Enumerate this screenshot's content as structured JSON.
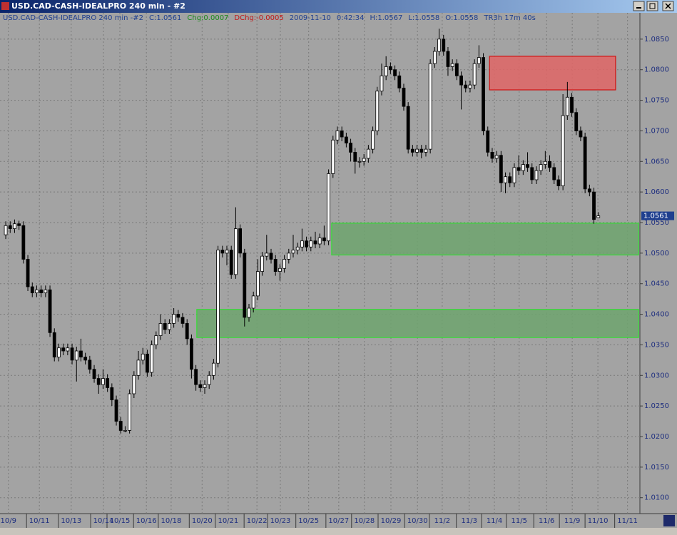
{
  "window_title": "USD.CAD-CASH-IDEALPRO  240 min  - #2",
  "chart_data": {
    "type": "candlestick",
    "info": [
      {
        "text": "USD.CAD-CASH-IDEALPRO  240 min  -#2",
        "color": "#1f3f8f"
      },
      {
        "text": "C:1.0561",
        "color": "#1f3f8f"
      },
      {
        "text": "Chg:0.0007",
        "color": "#1a8a1a"
      },
      {
        "text": "DChg:-0.0005",
        "color": "#c01818"
      },
      {
        "text": "2009-11-10",
        "color": "#1f3f8f"
      },
      {
        "text": "0:42:34",
        "color": "#1f3f8f"
      },
      {
        "text": "H:1.0567",
        "color": "#1f3f8f"
      },
      {
        "text": "L:1.0558",
        "color": "#1f3f8f"
      },
      {
        "text": "O:1.0558",
        "color": "#1f3f8f"
      },
      {
        "text": "TR3h 17m 40s",
        "color": "#1f3f8f"
      }
    ],
    "ohlc": [
      [
        1.053,
        1.0552,
        1.0523,
        1.0545
      ],
      [
        1.0545,
        1.0552,
        1.0533,
        1.054
      ],
      [
        1.054,
        1.0555,
        1.0533,
        1.0548
      ],
      [
        1.0548,
        1.0553,
        1.0538,
        1.0545
      ],
      [
        1.0545,
        1.0552,
        1.0483,
        1.049
      ],
      [
        1.049,
        1.0497,
        1.0438,
        1.0445
      ],
      [
        1.0445,
        1.0452,
        1.0428,
        1.0435
      ],
      [
        1.0435,
        1.0447,
        1.0428,
        1.044
      ],
      [
        1.044,
        1.0447,
        1.0428,
        1.0435
      ],
      [
        1.0435,
        1.0447,
        1.0428,
        1.044
      ],
      [
        1.044,
        1.0447,
        1.0363,
        1.037
      ],
      [
        1.037,
        1.0377,
        1.0323,
        1.033
      ],
      [
        1.033,
        1.0352,
        1.0323,
        1.0345
      ],
      [
        1.0345,
        1.0352,
        1.0333,
        1.034
      ],
      [
        1.034,
        1.0352,
        1.0333,
        1.0345
      ],
      [
        1.0345,
        1.0352,
        1.0318,
        1.0325
      ],
      [
        1.0325,
        1.0347,
        1.029,
        1.034
      ],
      [
        1.034,
        1.036,
        1.0323,
        1.033
      ],
      [
        1.033,
        1.0337,
        1.0318,
        1.0325
      ],
      [
        1.0325,
        1.0332,
        1.0303,
        1.031
      ],
      [
        1.031,
        1.0317,
        1.0288,
        1.0295
      ],
      [
        1.0295,
        1.0302,
        1.027,
        1.0285
      ],
      [
        1.0285,
        1.031,
        1.0278,
        1.0295
      ],
      [
        1.0295,
        1.0302,
        1.0273,
        1.028
      ],
      [
        1.028,
        1.0287,
        1.025,
        1.026
      ],
      [
        1.026,
        1.0267,
        1.0218,
        1.0225
      ],
      [
        1.0225,
        1.0232,
        1.0205,
        1.021
      ],
      [
        1.021,
        1.0217,
        1.0207,
        1.021
      ],
      [
        1.021,
        1.0277,
        1.0205,
        1.027
      ],
      [
        1.027,
        1.0307,
        1.0263,
        1.03
      ],
      [
        1.03,
        1.034,
        1.0293,
        1.0325
      ],
      [
        1.0325,
        1.0345,
        1.0318,
        1.0335
      ],
      [
        1.0335,
        1.0342,
        1.0298,
        1.0305
      ],
      [
        1.0305,
        1.0357,
        1.0298,
        1.035
      ],
      [
        1.035,
        1.0372,
        1.0343,
        1.0365
      ],
      [
        1.0365,
        1.04,
        1.0358,
        1.0385
      ],
      [
        1.0385,
        1.0392,
        1.0368,
        1.0375
      ],
      [
        1.0375,
        1.0392,
        1.0368,
        1.0385
      ],
      [
        1.0385,
        1.041,
        1.0378,
        1.04
      ],
      [
        1.04,
        1.0407,
        1.0388,
        1.0395
      ],
      [
        1.0395,
        1.0402,
        1.0378,
        1.0385
      ],
      [
        1.0385,
        1.0392,
        1.035,
        1.036
      ],
      [
        1.036,
        1.0367,
        1.0295,
        1.031
      ],
      [
        1.031,
        1.0317,
        1.0275,
        1.0285
      ],
      [
        1.0285,
        1.0292,
        1.0273,
        1.028
      ],
      [
        1.028,
        1.0292,
        1.027,
        1.0285
      ],
      [
        1.0285,
        1.0307,
        1.0278,
        1.03
      ],
      [
        1.03,
        1.0327,
        1.0293,
        1.032
      ],
      [
        1.032,
        1.0512,
        1.0313,
        1.0505
      ],
      [
        1.0505,
        1.0512,
        1.0493,
        1.05
      ],
      [
        1.05,
        1.0512,
        1.048,
        1.0505
      ],
      [
        1.0505,
        1.0512,
        1.0458,
        1.0465
      ],
      [
        1.0465,
        1.0575,
        1.0458,
        1.054
      ],
      [
        1.054,
        1.0547,
        1.0493,
        1.05
      ],
      [
        1.05,
        1.0507,
        1.038,
        1.0395
      ],
      [
        1.0395,
        1.0417,
        1.0388,
        1.041
      ],
      [
        1.041,
        1.0437,
        1.0403,
        1.043
      ],
      [
        1.043,
        1.049,
        1.0423,
        1.047
      ],
      [
        1.047,
        1.0502,
        1.0463,
        1.0495
      ],
      [
        1.0495,
        1.053,
        1.0488,
        1.05
      ],
      [
        1.05,
        1.0507,
        1.0483,
        1.049
      ],
      [
        1.049,
        1.0497,
        1.0463,
        1.047
      ],
      [
        1.047,
        1.0482,
        1.0455,
        1.0475
      ],
      [
        1.0475,
        1.0497,
        1.0468,
        1.049
      ],
      [
        1.049,
        1.0507,
        1.0483,
        1.05
      ],
      [
        1.05,
        1.053,
        1.0493,
        1.0505
      ],
      [
        1.0505,
        1.0517,
        1.0498,
        1.051
      ],
      [
        1.051,
        1.054,
        1.0503,
        1.052
      ],
      [
        1.052,
        1.0527,
        1.0503,
        1.051
      ],
      [
        1.051,
        1.0527,
        1.0503,
        1.052
      ],
      [
        1.052,
        1.0535,
        1.0508,
        1.0515
      ],
      [
        1.0515,
        1.0532,
        1.0508,
        1.0525
      ],
      [
        1.0525,
        1.0545,
        1.0513,
        1.052
      ],
      [
        1.052,
        1.0637,
        1.0513,
        1.063
      ],
      [
        1.063,
        1.0692,
        1.0623,
        1.0685
      ],
      [
        1.0685,
        1.0707,
        1.0678,
        1.07
      ],
      [
        1.07,
        1.0707,
        1.0683,
        1.069
      ],
      [
        1.069,
        1.0697,
        1.0673,
        1.068
      ],
      [
        1.068,
        1.0687,
        1.065,
        1.0665
      ],
      [
        1.0665,
        1.0672,
        1.063,
        1.065
      ],
      [
        1.065,
        1.0657,
        1.064,
        1.065
      ],
      [
        1.065,
        1.0662,
        1.0643,
        1.0655
      ],
      [
        1.0655,
        1.0677,
        1.0648,
        1.067
      ],
      [
        1.067,
        1.0707,
        1.0663,
        1.07
      ],
      [
        1.07,
        1.0772,
        1.0693,
        1.0765
      ],
      [
        1.0765,
        1.081,
        1.0758,
        1.079
      ],
      [
        1.079,
        1.0822,
        1.0783,
        1.0805
      ],
      [
        1.0805,
        1.0812,
        1.0793,
        1.08
      ],
      [
        1.08,
        1.0807,
        1.0783,
        1.079
      ],
      [
        1.079,
        1.0797,
        1.0763,
        1.077
      ],
      [
        1.077,
        1.0777,
        1.0733,
        1.074
      ],
      [
        1.074,
        1.0747,
        1.0663,
        1.067
      ],
      [
        1.067,
        1.0677,
        1.0658,
        1.0665
      ],
      [
        1.0665,
        1.0677,
        1.0658,
        1.067
      ],
      [
        1.067,
        1.0677,
        1.0655,
        1.0665
      ],
      [
        1.0665,
        1.0677,
        1.0658,
        1.067
      ],
      [
        1.067,
        1.0817,
        1.0663,
        1.081
      ],
      [
        1.081,
        1.0837,
        1.0803,
        1.083
      ],
      [
        1.083,
        1.0867,
        1.0823,
        1.085
      ],
      [
        1.085,
        1.0857,
        1.0823,
        1.083
      ],
      [
        1.083,
        1.0837,
        1.079,
        1.0805
      ],
      [
        1.0805,
        1.0817,
        1.0798,
        1.081
      ],
      [
        1.081,
        1.0817,
        1.0783,
        1.079
      ],
      [
        1.079,
        1.0797,
        1.0735,
        1.0775
      ],
      [
        1.0775,
        1.0782,
        1.0763,
        1.077
      ],
      [
        1.077,
        1.0782,
        1.0763,
        1.0775
      ],
      [
        1.0775,
        1.0817,
        1.0768,
        1.081
      ],
      [
        1.081,
        1.084,
        1.0803,
        1.082
      ],
      [
        1.082,
        1.0827,
        1.0693,
        1.07
      ],
      [
        1.07,
        1.0707,
        1.0658,
        1.0665
      ],
      [
        1.0665,
        1.0672,
        1.0648,
        1.0655
      ],
      [
        1.0655,
        1.0667,
        1.0648,
        1.066
      ],
      [
        1.066,
        1.0667,
        1.06,
        1.0615
      ],
      [
        1.0615,
        1.0632,
        1.0598,
        1.0625
      ],
      [
        1.0625,
        1.0632,
        1.0608,
        1.0615
      ],
      [
        1.0615,
        1.0647,
        1.0608,
        1.064
      ],
      [
        1.064,
        1.066,
        1.0628,
        1.0635
      ],
      [
        1.0635,
        1.0652,
        1.0628,
        1.0645
      ],
      [
        1.0645,
        1.0665,
        1.0633,
        1.064
      ],
      [
        1.064,
        1.0647,
        1.0613,
        1.062
      ],
      [
        1.062,
        1.0642,
        1.0613,
        1.0635
      ],
      [
        1.0635,
        1.0652,
        1.0628,
        1.0645
      ],
      [
        1.0645,
        1.0667,
        1.0638,
        1.065
      ],
      [
        1.065,
        1.066,
        1.0633,
        1.064
      ],
      [
        1.064,
        1.0647,
        1.0613,
        1.062
      ],
      [
        1.062,
        1.0627,
        1.0603,
        1.061
      ],
      [
        1.061,
        1.076,
        1.0603,
        1.0725
      ],
      [
        1.0725,
        1.078,
        1.0718,
        1.0755
      ],
      [
        1.0755,
        1.0762,
        1.0723,
        1.073
      ],
      [
        1.073,
        1.0737,
        1.0693,
        1.07
      ],
      [
        1.07,
        1.0707,
        1.0683,
        1.069
      ],
      [
        1.069,
        1.0697,
        1.0598,
        1.0605
      ],
      [
        1.0605,
        1.0612,
        1.0593,
        1.06
      ],
      [
        1.06,
        1.0607,
        1.0548,
        1.0555
      ],
      [
        1.0558,
        1.0567,
        1.0558,
        1.0561
      ]
    ],
    "up_color": "#ffffff",
    "down_color": "#000000",
    "zones": [
      {
        "top": 1.0822,
        "bottom": 1.0767,
        "x": [
          109.4,
          137.9
        ],
        "color": "#e06666",
        "border": "#d01010"
      },
      {
        "top": 1.0549,
        "bottom": 1.0497,
        "x": [
          73.7,
          143.1
        ],
        "color": "#6fa56f",
        "border": "#33dd33"
      },
      {
        "top": 1.0408,
        "bottom": 1.0362,
        "x": [
          43.2,
          143.1
        ],
        "color": "#6fa56f",
        "border": "#33dd33"
      }
    ],
    "xlim": [
      -1.3,
      143.4
    ],
    "xticks": [
      {
        "value": 0.6,
        "label": "10/9"
      },
      {
        "value": 7.6,
        "label": "10/11"
      },
      {
        "value": 14.8,
        "label": "10/13"
      },
      {
        "value": 22.1,
        "label": "10/14"
      },
      {
        "value": 25.8,
        "label": "10/15"
      },
      {
        "value": 31.8,
        "label": "10/16"
      },
      {
        "value": 37.4,
        "label": "10/18"
      },
      {
        "value": 44.4,
        "label": "10/20"
      },
      {
        "value": 50.3,
        "label": "10/21"
      },
      {
        "value": 56.8,
        "label": "10/22"
      },
      {
        "value": 62.1,
        "label": "10/23"
      },
      {
        "value": 68.5,
        "label": "10/25"
      },
      {
        "value": 75.3,
        "label": "10/27"
      },
      {
        "value": 81.1,
        "label": "10/28"
      },
      {
        "value": 87.1,
        "label": "10/29"
      },
      {
        "value": 93.1,
        "label": "10/30"
      },
      {
        "value": 98.7,
        "label": "11/2"
      },
      {
        "value": 104.8,
        "label": "11/3"
      },
      {
        "value": 110.5,
        "label": "11/4"
      },
      {
        "value": 116.1,
        "label": "11/5"
      },
      {
        "value": 122.3,
        "label": "11/6"
      },
      {
        "value": 128.1,
        "label": "11/9"
      },
      {
        "value": 133.9,
        "label": "11/10"
      },
      {
        "value": 140.6,
        "label": "11/11"
      }
    ],
    "ylim": [
      1.0074,
      1.0893
    ],
    "yticks": [
      {
        "value": 1.085,
        "label": "1.0850"
      },
      {
        "value": 1.08,
        "label": "1.0800"
      },
      {
        "value": 1.075,
        "label": "1.0750"
      },
      {
        "value": 1.07,
        "label": "1.0700"
      },
      {
        "value": 1.065,
        "label": "1.0650"
      },
      {
        "value": 1.06,
        "label": "1.0600"
      },
      {
        "value": 1.055,
        "label": "1.0550"
      },
      {
        "value": 1.05,
        "label": "1.0500"
      },
      {
        "value": 1.045,
        "label": "1.0450"
      },
      {
        "value": 1.04,
        "label": "1.0400"
      },
      {
        "value": 1.035,
        "label": "1.0350"
      },
      {
        "value": 1.03,
        "label": "1.0300"
      },
      {
        "value": 1.025,
        "label": "1.0250"
      },
      {
        "value": 1.02,
        "label": "1.0200"
      },
      {
        "value": 1.015,
        "label": "1.0150"
      },
      {
        "value": 1.01,
        "label": "1.0100"
      }
    ],
    "grid": true
  }
}
